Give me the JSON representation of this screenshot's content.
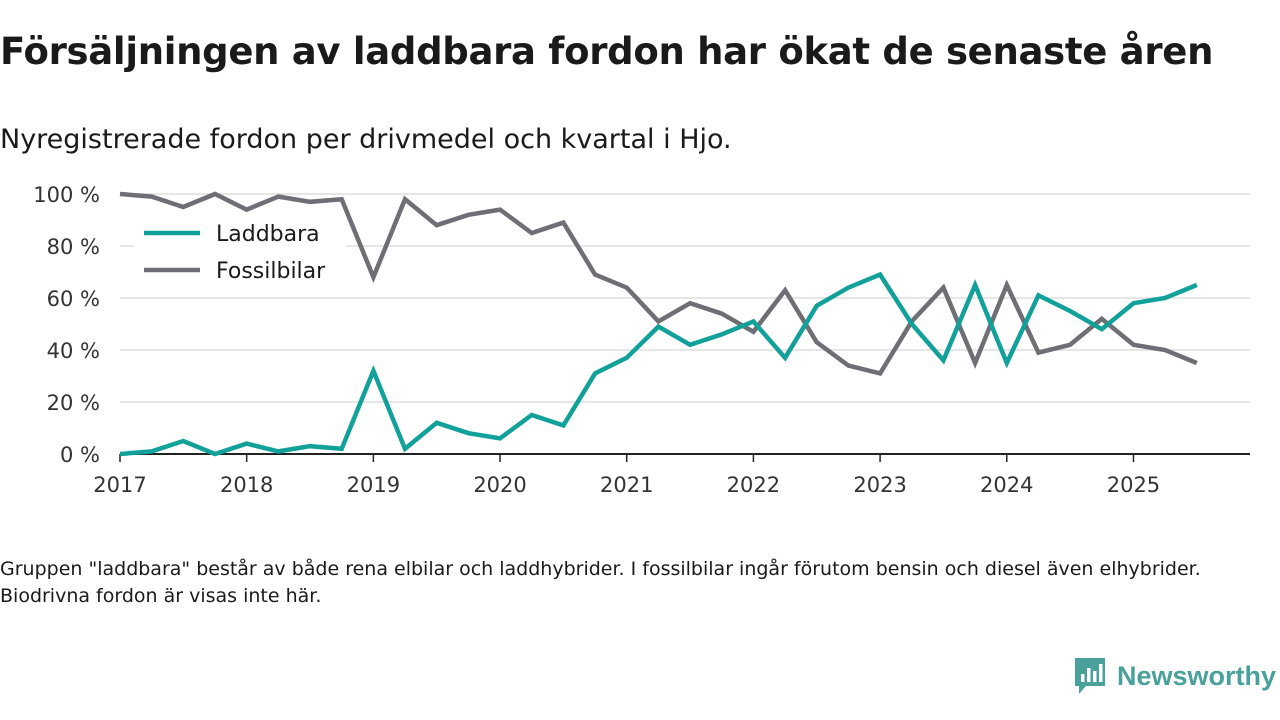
{
  "title": "Försäljningen av laddbara fordon har ökat de senaste åren",
  "subtitle": "Nyregistrerade fordon per drivmedel och kvartal i Hjo.",
  "footnote": "Gruppen \"laddbara\" består av både rena elbilar och laddhybrider. I fossilbilar ingår förutom bensin och diesel även elhybrider. Biodrivna fordon är visas inte här.",
  "brand": {
    "name": "Newsworthy",
    "logo_icon": "newsworthy-logo-icon"
  },
  "colors": {
    "laddbara": "#12a19a",
    "fossil": "#6e6e75",
    "grid": "#dddddd",
    "axis": "#222222",
    "brand": "#4aa09a"
  },
  "chart_data": {
    "type": "line",
    "title": "Försäljningen av laddbara fordon har ökat de senaste åren",
    "xlabel": "",
    "ylabel": "",
    "ylim": [
      0,
      100
    ],
    "xlim": [
      2017,
      2025.92
    ],
    "yticks": [
      0,
      20,
      40,
      60,
      80,
      100
    ],
    "ytick_labels": [
      "0 %",
      "20 %",
      "40 %",
      "60 %",
      "80 %",
      "100 %"
    ],
    "xticks": [
      2017,
      2018,
      2019,
      2020,
      2021,
      2022,
      2023,
      2024,
      2025
    ],
    "xtick_labels": [
      "2017",
      "2018",
      "2019",
      "2020",
      "2021",
      "2022",
      "2023",
      "2024",
      "2025"
    ],
    "grid": true,
    "legend_position": "top-left",
    "x": [
      "2017 Q1",
      "2017 Q2",
      "2017 Q3",
      "2017 Q4",
      "2018 Q1",
      "2018 Q2",
      "2018 Q3",
      "2018 Q4",
      "2019 Q1",
      "2019 Q2",
      "2019 Q3",
      "2019 Q4",
      "2020 Q1",
      "2020 Q2",
      "2020 Q3",
      "2020 Q4",
      "2021 Q1",
      "2021 Q2",
      "2021 Q3",
      "2021 Q4",
      "2022 Q1",
      "2022 Q2",
      "2022 Q3",
      "2022 Q4",
      "2023 Q1",
      "2023 Q2",
      "2023 Q3",
      "2023 Q4",
      "2024 Q1",
      "2024 Q2",
      "2024 Q3",
      "2024 Q4",
      "2025 Q1",
      "2025 Q2",
      "2025 Q3"
    ],
    "series": [
      {
        "name": "Laddbara",
        "color": "#12a19a",
        "values": [
          0,
          1,
          5,
          0,
          4,
          1,
          3,
          2,
          32,
          2,
          12,
          8,
          6,
          15,
          11,
          31,
          37,
          49,
          42,
          46,
          51,
          37,
          57,
          64,
          69,
          50,
          36,
          65,
          35,
          61,
          55,
          48,
          58,
          60,
          65
        ]
      },
      {
        "name": "Fossilbilar",
        "color": "#6e6e75",
        "values": [
          100,
          99,
          95,
          100,
          94,
          99,
          97,
          98,
          68,
          98,
          88,
          92,
          94,
          85,
          89,
          69,
          64,
          51,
          58,
          54,
          47,
          63,
          43,
          34,
          31,
          51,
          64,
          35,
          65,
          39,
          42,
          52,
          42,
          40,
          35
        ]
      }
    ]
  }
}
